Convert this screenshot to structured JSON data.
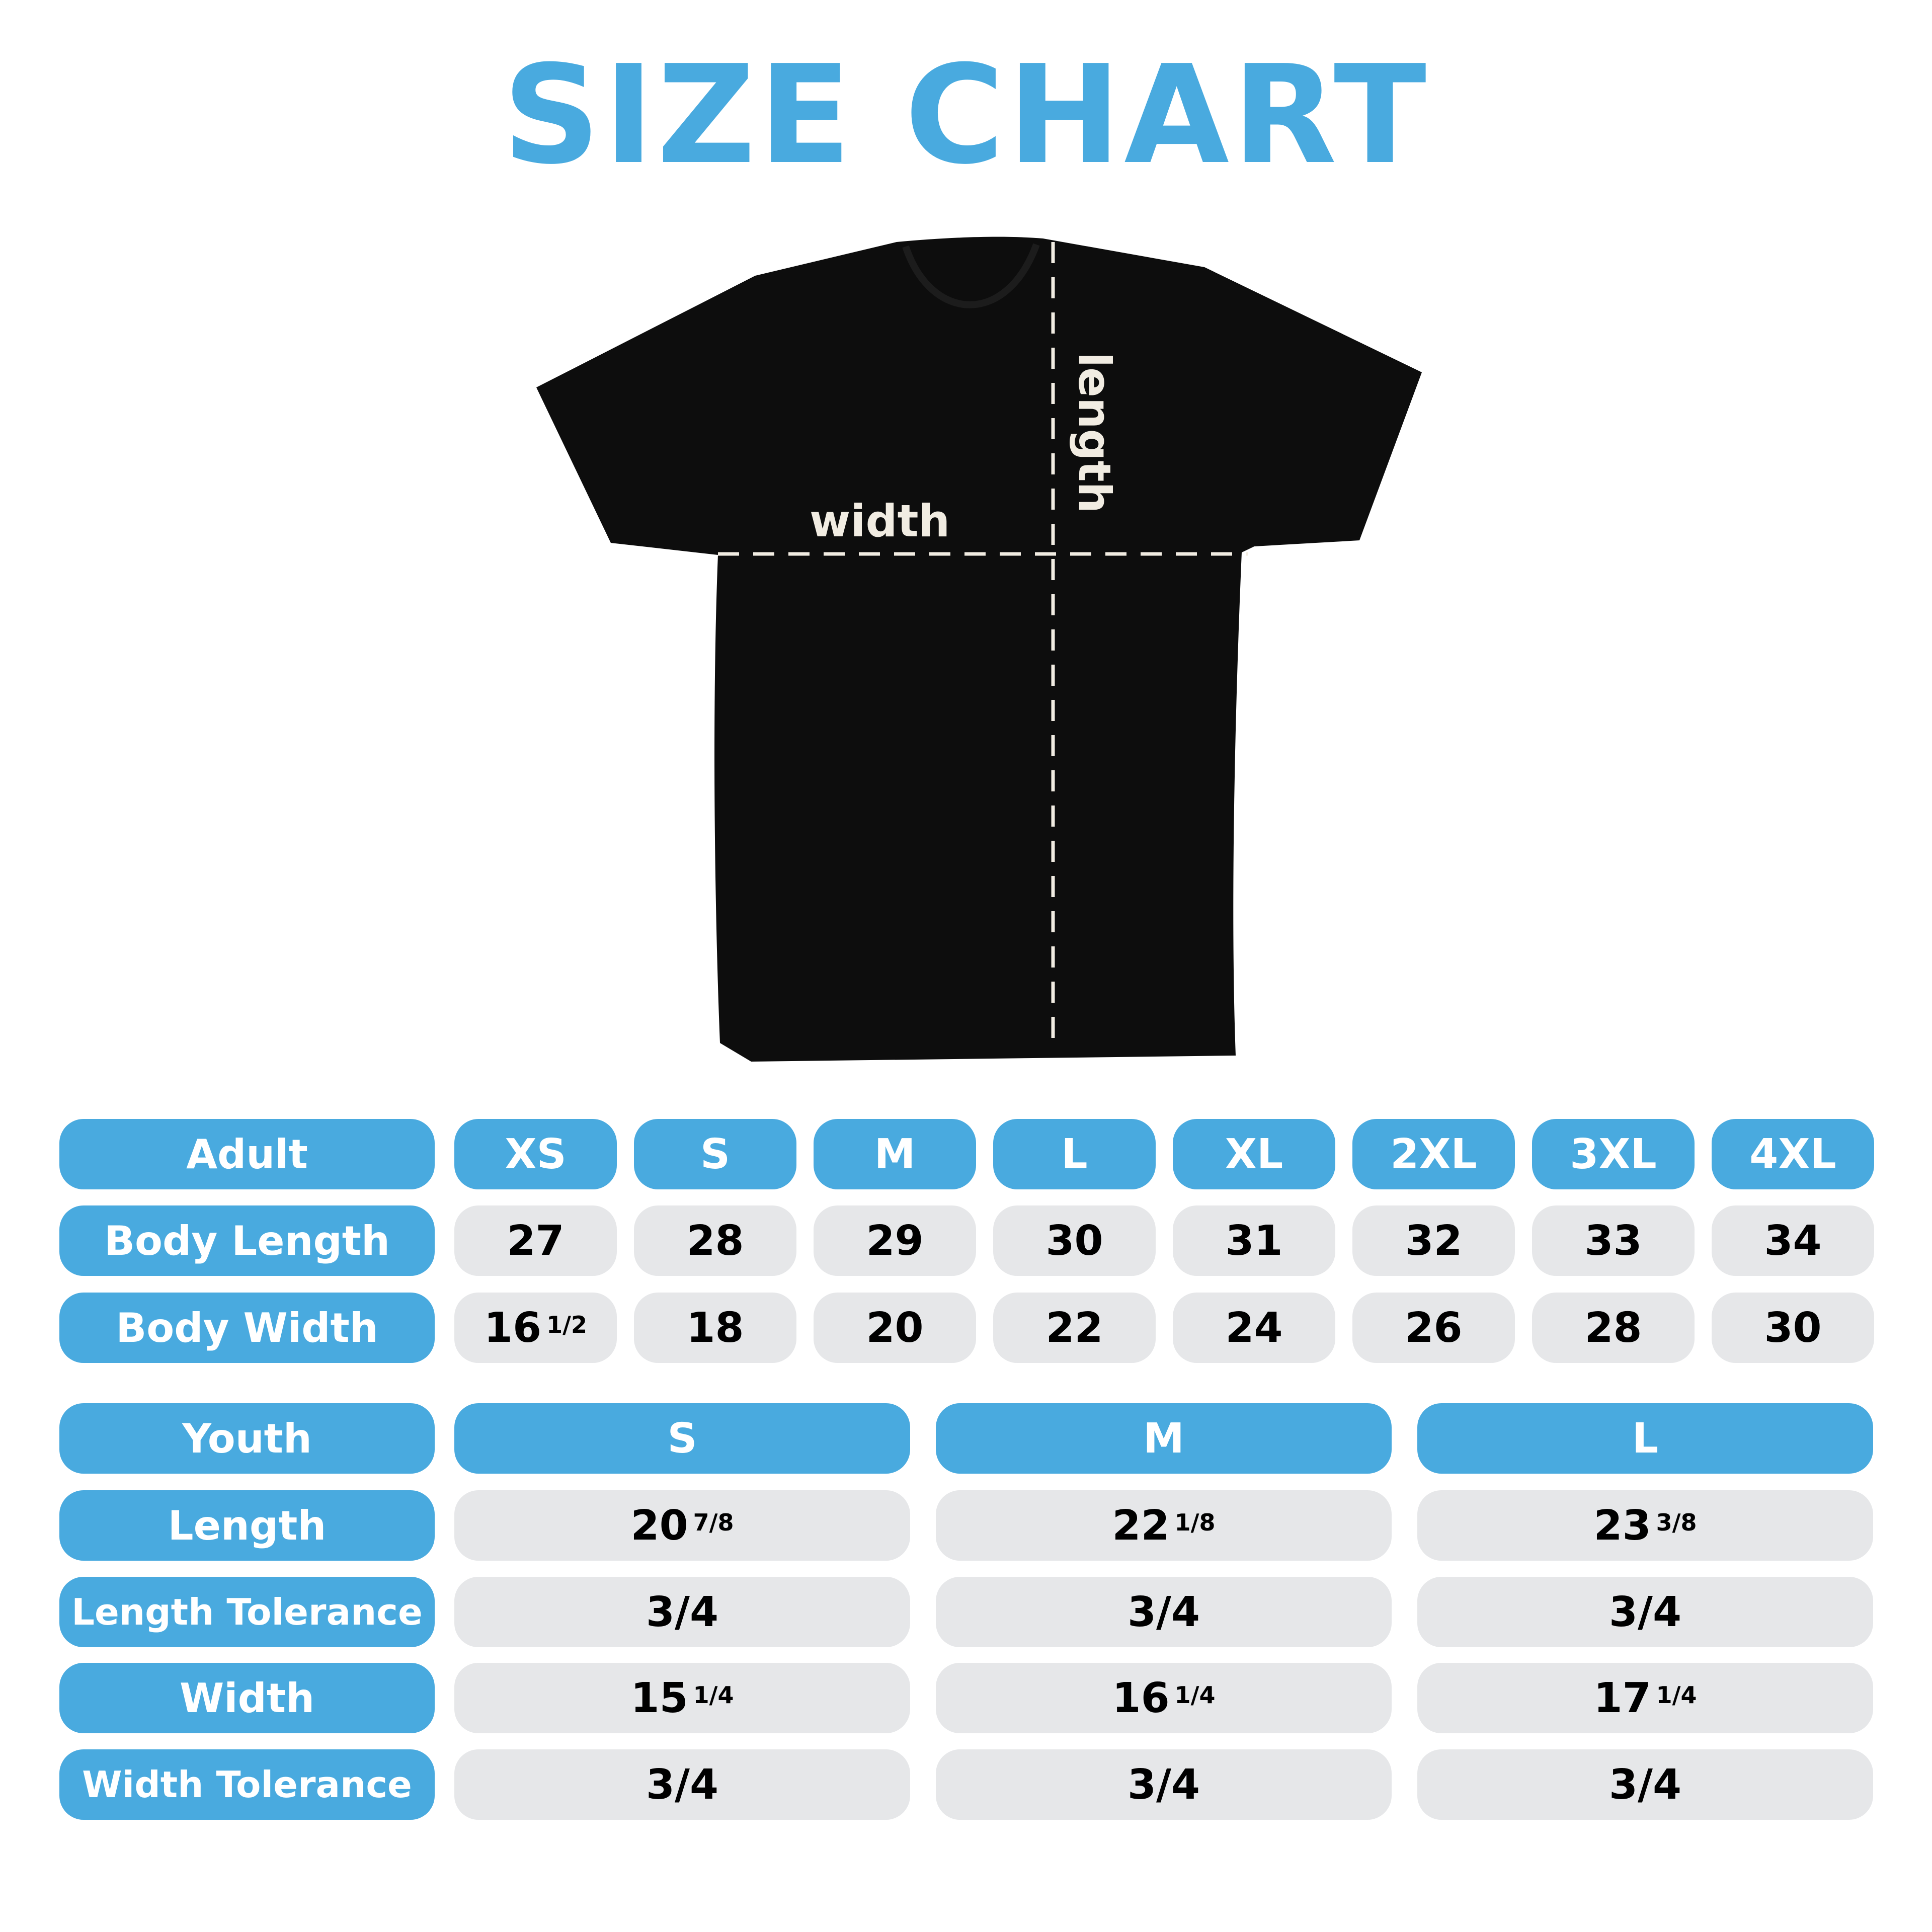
{
  "title": "SIZE CHART",
  "colors": {
    "accent": "#49aadf",
    "cell_bg": "#e6e7e9",
    "shirt": "#0d0d0d",
    "measure_text": "#f1ece2"
  },
  "shirt_labels": {
    "width": "width",
    "length": "length"
  },
  "adult": {
    "header": "Adult",
    "sizes": [
      "XS",
      "S",
      "M",
      "L",
      "XL",
      "2XL",
      "3XL",
      "4XL"
    ],
    "rows": [
      {
        "label": "Body Length",
        "values": [
          {
            "w": "27",
            "f": ""
          },
          {
            "w": "28",
            "f": ""
          },
          {
            "w": "29",
            "f": ""
          },
          {
            "w": "30",
            "f": ""
          },
          {
            "w": "31",
            "f": ""
          },
          {
            "w": "32",
            "f": ""
          },
          {
            "w": "33",
            "f": ""
          },
          {
            "w": "34",
            "f": ""
          }
        ]
      },
      {
        "label": "Body Width",
        "values": [
          {
            "w": "16",
            "f": "1/2"
          },
          {
            "w": "18",
            "f": ""
          },
          {
            "w": "20",
            "f": ""
          },
          {
            "w": "22",
            "f": ""
          },
          {
            "w": "24",
            "f": ""
          },
          {
            "w": "26",
            "f": ""
          },
          {
            "w": "28",
            "f": ""
          },
          {
            "w": "30",
            "f": ""
          }
        ]
      }
    ]
  },
  "youth": {
    "header": "Youth",
    "sizes": [
      "S",
      "M",
      "L"
    ],
    "rows": [
      {
        "label": "Length",
        "values": [
          {
            "w": "20",
            "f": "7/8"
          },
          {
            "w": "22",
            "f": "1/8"
          },
          {
            "w": "23",
            "f": "3/8"
          }
        ]
      },
      {
        "label": "Length Tolerance",
        "values": [
          {
            "w": "3/4",
            "f": ""
          },
          {
            "w": "3/4",
            "f": ""
          },
          {
            "w": "3/4",
            "f": ""
          }
        ]
      },
      {
        "label": "Width",
        "values": [
          {
            "w": "15",
            "f": "1/4"
          },
          {
            "w": "16",
            "f": "1/4"
          },
          {
            "w": "17",
            "f": "1/4"
          }
        ]
      },
      {
        "label": "Width Tolerance",
        "values": [
          {
            "w": "3/4",
            "f": ""
          },
          {
            "w": "3/4",
            "f": ""
          },
          {
            "w": "3/4",
            "f": ""
          }
        ]
      }
    ]
  }
}
